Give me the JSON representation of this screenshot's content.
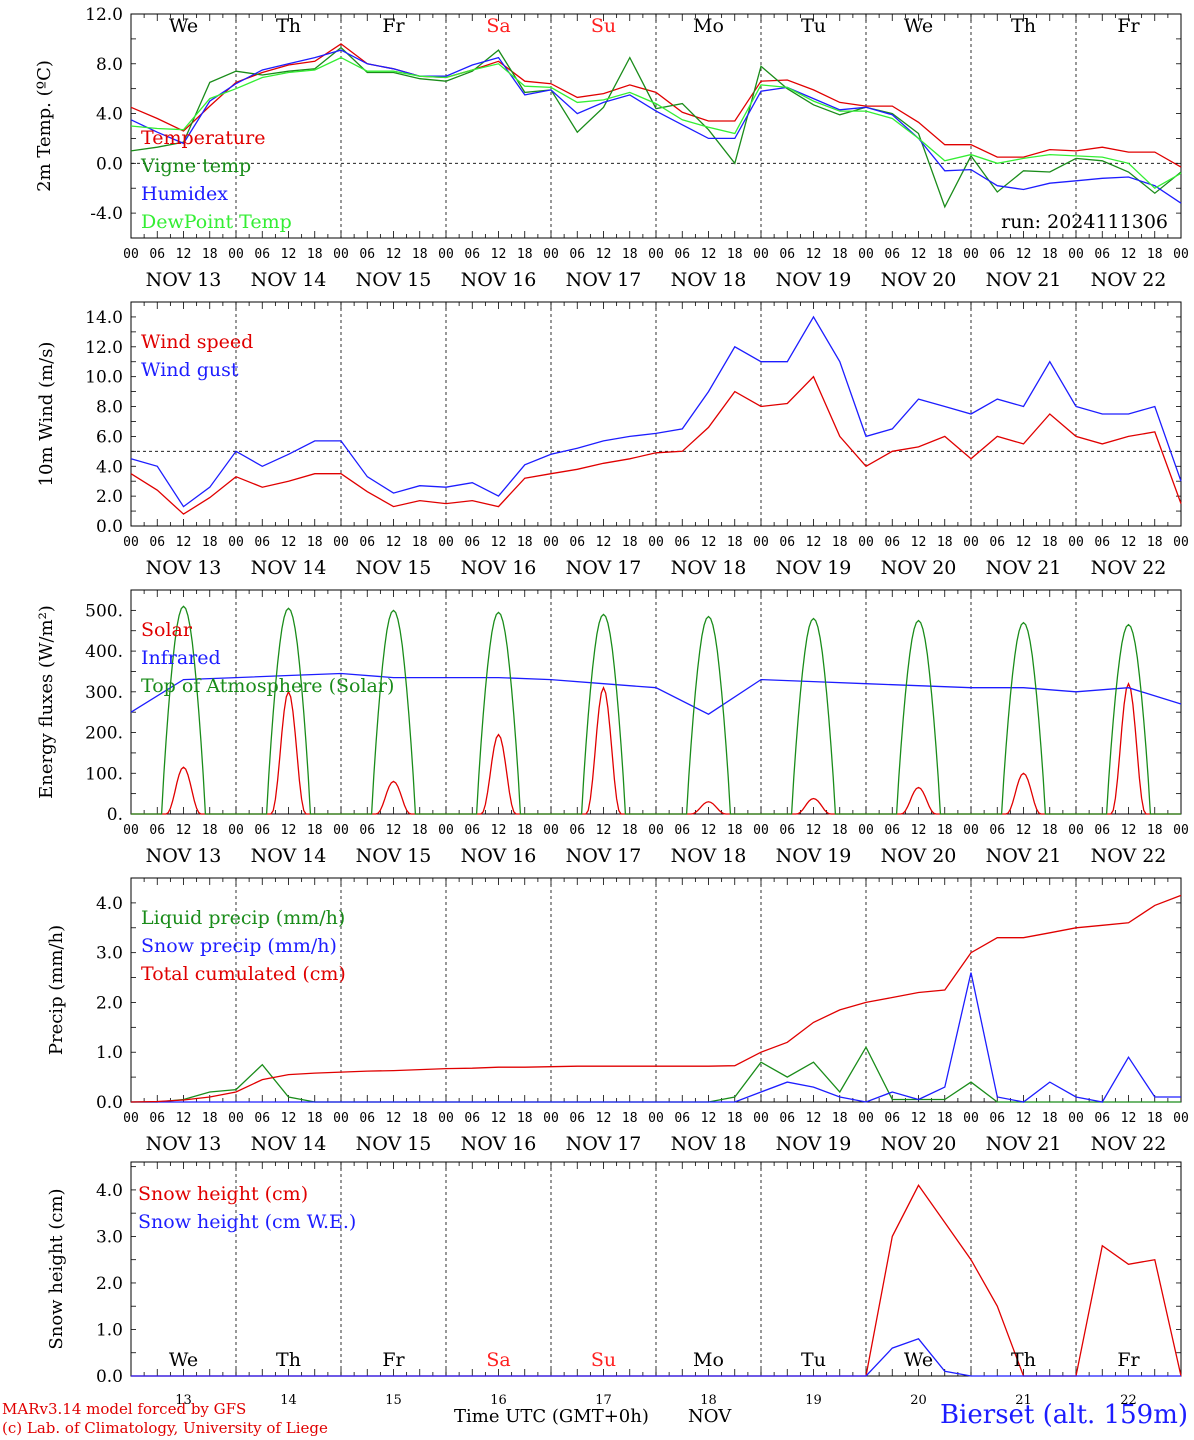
{
  "footer": {
    "model_note": "MARv3.14 model forced by GFS",
    "copyright": "(c) Lab. of Climatology, University of Liege",
    "station": "Bierset (alt. 159m)",
    "x_axis_title": "Time UTC (GMT+0h)",
    "x_axis_month": "NOV"
  },
  "colors": {
    "red": "#e00000",
    "green": "#1a8c1a",
    "blue": "#1d1dff",
    "light_green": "#33ee33",
    "black": "#000000",
    "weekend": "#ff2020"
  },
  "days": {
    "weekday_labels": [
      "We",
      "Th",
      "Fr",
      "Sa",
      "Su",
      "Mo",
      "Tu",
      "We",
      "Th",
      "Fr"
    ],
    "weekend_flags": [
      false,
      false,
      false,
      true,
      true,
      false,
      false,
      false,
      false,
      false
    ],
    "date_labels": [
      "NOV 13",
      "NOV 14",
      "NOV 15",
      "NOV 16",
      "NOV 17",
      "NOV 18",
      "NOV 19",
      "NOV 20",
      "NOV 21",
      "NOV 22"
    ],
    "day_numbers": [
      "13",
      "14",
      "15",
      "16",
      "17",
      "18",
      "19",
      "20",
      "21",
      "22"
    ],
    "hour_ticks": [
      "00",
      "06",
      "12",
      "18"
    ],
    "final_tick": "00"
  },
  "chart_data": [
    {
      "type": "line",
      "ylabel": "2m Temp. (ºC)",
      "ylim": [
        -6,
        12
      ],
      "yticks": [
        -4,
        0,
        4,
        8,
        12
      ],
      "ytick_labels": [
        "-4.0",
        "0.0",
        "4.0",
        "8.0",
        "12.0"
      ],
      "ref_line": 0,
      "annotation": "run: 2024111306",
      "x_hours": [
        0,
        6,
        12,
        18,
        24,
        30,
        36,
        42,
        48,
        54,
        60,
        66,
        72,
        78,
        84,
        90,
        96,
        102,
        108,
        114,
        120,
        126,
        132,
        138,
        144,
        150,
        156,
        162,
        168,
        174,
        180,
        186,
        192,
        198,
        204,
        210,
        216,
        222,
        228,
        234,
        240
      ],
      "series": [
        {
          "name": "Temperature",
          "color": "red",
          "values": [
            4.5,
            3.6,
            2.6,
            4.6,
            6.5,
            7.3,
            7.9,
            8.2,
            9.6,
            8.0,
            7.6,
            7.0,
            6.9,
            7.5,
            8.2,
            6.6,
            6.4,
            5.3,
            5.6,
            6.3,
            5.7,
            4.1,
            3.4,
            3.4,
            6.6,
            6.7,
            5.9,
            4.9,
            4.6,
            4.6,
            3.3,
            1.5,
            1.5,
            0.5,
            0.5,
            1.1,
            1.0,
            1.3,
            0.9,
            0.9,
            -0.3
          ]
        },
        {
          "name": "Vigne temp",
          "color": "green",
          "values": [
            1.0,
            1.3,
            1.7,
            6.5,
            7.4,
            7.1,
            7.4,
            7.6,
            9.3,
            7.3,
            7.3,
            6.8,
            6.6,
            7.4,
            9.1,
            5.7,
            5.9,
            2.5,
            4.5,
            8.5,
            4.4,
            4.8,
            2.7,
            0.0,
            7.8,
            6.0,
            4.7,
            3.9,
            4.5,
            4.0,
            2.4,
            -3.5,
            0.6,
            -2.3,
            -0.6,
            -0.7,
            0.4,
            0.2,
            -0.7,
            -2.4,
            -0.7
          ]
        },
        {
          "name": "Humidex",
          "color": "blue",
          "values": [
            3.5,
            2.5,
            1.6,
            5.0,
            6.4,
            7.5,
            8.0,
            8.5,
            9.1,
            8.0,
            7.6,
            7.0,
            7.0,
            7.9,
            8.5,
            5.5,
            5.9,
            4.0,
            4.9,
            5.5,
            4.2,
            3.1,
            2.0,
            2.0,
            5.8,
            6.1,
            5.2,
            4.3,
            4.5,
            3.9,
            2.0,
            -0.6,
            -0.5,
            -1.8,
            -2.1,
            -1.6,
            -1.4,
            -1.2,
            -1.1,
            -1.8,
            -3.2
          ]
        },
        {
          "name": "DewPoint Temp",
          "color": "light_green",
          "values": [
            3.0,
            2.8,
            2.7,
            5.2,
            6.0,
            6.9,
            7.3,
            7.5,
            8.5,
            7.4,
            7.4,
            7.0,
            6.9,
            7.5,
            8.0,
            6.2,
            6.1,
            4.9,
            5.1,
            5.7,
            4.8,
            3.5,
            2.9,
            2.4,
            6.3,
            6.1,
            5.0,
            4.2,
            4.2,
            3.6,
            2.0,
            0.2,
            0.7,
            0.0,
            0.4,
            0.7,
            0.6,
            0.5,
            0.0,
            -2.0,
            -0.8
          ]
        }
      ]
    },
    {
      "type": "line",
      "ylabel": "10m Wind (m/s)",
      "ylim": [
        0,
        15
      ],
      "yticks": [
        0,
        2,
        4,
        6,
        8,
        10,
        12,
        14
      ],
      "ytick_labels": [
        "0.0",
        "2.0",
        "4.0",
        "6.0",
        "8.0",
        "10.0",
        "12.0",
        "14.0"
      ],
      "ref_line": 5,
      "x_hours": [
        0,
        6,
        12,
        18,
        24,
        30,
        36,
        42,
        48,
        54,
        60,
        66,
        72,
        78,
        84,
        90,
        96,
        102,
        108,
        114,
        120,
        126,
        132,
        138,
        144,
        150,
        156,
        162,
        168,
        174,
        180,
        186,
        192,
        198,
        204,
        210,
        216,
        222,
        228,
        234,
        240
      ],
      "series": [
        {
          "name": "Wind speed",
          "color": "red",
          "values": [
            3.5,
            2.4,
            0.8,
            1.9,
            3.3,
            2.6,
            3.0,
            3.5,
            3.5,
            2.3,
            1.3,
            1.7,
            1.5,
            1.7,
            1.3,
            3.2,
            3.5,
            3.8,
            4.2,
            4.5,
            4.9,
            5.0,
            6.6,
            9.0,
            8.0,
            8.2,
            10.0,
            6.0,
            4.0,
            5.0,
            5.3,
            6.0,
            4.5,
            6.0,
            5.5,
            7.5,
            6.0,
            5.5,
            6.0,
            6.3,
            1.5
          ]
        },
        {
          "name": "Wind gust",
          "color": "blue",
          "values": [
            4.5,
            4.0,
            1.3,
            2.6,
            5.0,
            4.0,
            4.8,
            5.7,
            5.7,
            3.3,
            2.2,
            2.7,
            2.6,
            2.9,
            2.0,
            4.1,
            4.8,
            5.2,
            5.7,
            6.0,
            6.2,
            6.5,
            9.0,
            12.0,
            11.0,
            11.0,
            14.0,
            11.0,
            6.0,
            6.5,
            8.5,
            8.0,
            7.5,
            8.5,
            8.0,
            11.0,
            8.0,
            7.5,
            7.5,
            8.0,
            3.0
          ]
        }
      ]
    },
    {
      "type": "line",
      "ylabel": "Energy fluxes (W/m²)",
      "ylim": [
        0,
        550
      ],
      "yticks": [
        0,
        100,
        200,
        300,
        400,
        500
      ],
      "ytick_labels": [
        "0.",
        "100.",
        "200.",
        "300.",
        "400.",
        "500."
      ],
      "ref_line": null,
      "series": [
        {
          "name": "Solar",
          "color": "red",
          "daily_peaks": [
            115,
            300,
            80,
            195,
            310,
            30,
            38,
            65,
            100,
            320
          ]
        },
        {
          "name": "Infrared",
          "color": "blue",
          "x_hours": [
            0,
            12,
            24,
            36,
            48,
            60,
            72,
            84,
            96,
            108,
            120,
            132,
            144,
            156,
            168,
            180,
            192,
            204,
            216,
            228,
            240
          ],
          "values": [
            250,
            330,
            335,
            340,
            345,
            335,
            335,
            335,
            330,
            320,
            310,
            245,
            330,
            325,
            320,
            315,
            310,
            310,
            300,
            310,
            270
          ]
        },
        {
          "name": "Top of Atmosphere (Solar)",
          "color": "green",
          "daily_peaks": [
            510,
            505,
            500,
            495,
            490,
            485,
            480,
            475,
            470,
            465
          ]
        }
      ]
    },
    {
      "type": "line",
      "ylabel": "Precip (mm/h)",
      "ylim": [
        0,
        4.5
      ],
      "yticks": [
        0,
        1,
        2,
        3,
        4
      ],
      "ytick_labels": [
        "0.0",
        "1.0",
        "2.0",
        "3.0",
        "4.0"
      ],
      "ref_line": null,
      "x_hours": [
        0,
        6,
        12,
        18,
        24,
        30,
        36,
        42,
        48,
        54,
        60,
        66,
        72,
        78,
        84,
        90,
        96,
        102,
        108,
        114,
        120,
        126,
        132,
        138,
        144,
        150,
        156,
        162,
        168,
        174,
        180,
        186,
        192,
        198,
        204,
        210,
        216,
        222,
        228,
        234,
        240
      ],
      "series": [
        {
          "name": "Liquid precip (mm/h)",
          "color": "green",
          "values": [
            0,
            0,
            0.05,
            0.2,
            0.25,
            0.75,
            0.1,
            0,
            0,
            0,
            0,
            0,
            0,
            0,
            0,
            0,
            0,
            0,
            0,
            0,
            0,
            0,
            0,
            0.1,
            0.8,
            0.5,
            0.8,
            0.2,
            1.1,
            0.05,
            0.05,
            0.05,
            0.4,
            0,
            0,
            0,
            0,
            0,
            0,
            0,
            0
          ]
        },
        {
          "name": "Snow precip (mm/h)",
          "color": "blue",
          "values": [
            0,
            0,
            0,
            0,
            0,
            0,
            0,
            0,
            0,
            0,
            0,
            0,
            0,
            0,
            0,
            0,
            0,
            0,
            0,
            0,
            0,
            0,
            0,
            0,
            0.2,
            0.4,
            0.3,
            0.1,
            0,
            0.2,
            0.05,
            0.3,
            2.6,
            0.1,
            0,
            0.4,
            0.1,
            0,
            0.9,
            0.1,
            0.1
          ]
        },
        {
          "name": "Total cumulated (cm)",
          "color": "red",
          "values": [
            0,
            0.01,
            0.04,
            0.1,
            0.2,
            0.45,
            0.55,
            0.58,
            0.6,
            0.62,
            0.63,
            0.65,
            0.67,
            0.68,
            0.7,
            0.7,
            0.71,
            0.72,
            0.72,
            0.72,
            0.72,
            0.72,
            0.72,
            0.73,
            1.0,
            1.2,
            1.6,
            1.85,
            2.0,
            2.1,
            2.2,
            2.25,
            3.0,
            3.3,
            3.3,
            3.4,
            3.5,
            3.55,
            3.6,
            3.95,
            4.15
          ]
        }
      ]
    },
    {
      "type": "line",
      "ylabel": "Snow height (cm)",
      "ylim": [
        0,
        4.6
      ],
      "yticks": [
        0,
        1,
        2,
        3,
        4
      ],
      "ytick_labels": [
        "0.0",
        "1.0",
        "2.0",
        "3.0",
        "4.0"
      ],
      "ref_line": null,
      "x_hours": [
        0,
        12,
        24,
        36,
        48,
        60,
        72,
        84,
        96,
        108,
        120,
        132,
        144,
        150,
        156,
        162,
        168,
        174,
        180,
        186,
        192,
        198,
        204,
        210,
        216,
        222,
        228,
        234,
        240
      ],
      "series": [
        {
          "name": "Snow height (cm)",
          "color": "red",
          "values": [
            0,
            0,
            0,
            0,
            0,
            0,
            0,
            0,
            0,
            0,
            0,
            0,
            0,
            0,
            0,
            0,
            0,
            3.0,
            4.1,
            3.3,
            2.5,
            1.5,
            0,
            0,
            0,
            2.8,
            2.4,
            2.5,
            0
          ]
        },
        {
          "name": "Snow height (cm W.E.)",
          "color": "blue",
          "values": [
            0,
            0,
            0,
            0,
            0,
            0,
            0,
            0,
            0,
            0,
            0,
            0,
            0,
            0,
            0,
            0,
            0,
            0.6,
            0.8,
            0.1,
            0,
            0,
            0,
            0,
            0,
            0,
            0,
            0,
            0
          ]
        }
      ]
    }
  ]
}
